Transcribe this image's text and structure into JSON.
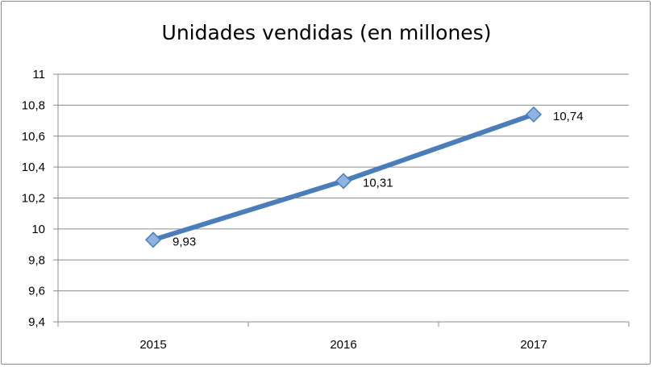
{
  "chart_data": {
    "type": "line",
    "title": "Unidades vendidas (en millones)",
    "categories": [
      "2015",
      "2016",
      "2017"
    ],
    "series": [
      {
        "values": [
          9.93,
          10.31,
          10.74
        ]
      }
    ],
    "data_labels": [
      "9,93",
      "10,31",
      "10,74"
    ],
    "ylim": [
      9.4,
      11
    ],
    "y_ticks": [
      9.4,
      9.6,
      9.8,
      10,
      10.2,
      10.4,
      10.6,
      10.8,
      11
    ],
    "y_tick_labels": [
      "9,4",
      "9,6",
      "9,8",
      "10",
      "10,2",
      "10,4",
      "10,6",
      "10,8",
      "11"
    ],
    "grid": true,
    "legend": "none",
    "colors": {
      "line": "#4a7ebb",
      "marker_fill": "#8fb3e0",
      "marker_stroke": "#4a7ebb",
      "grid": "#8c8c8c"
    }
  }
}
